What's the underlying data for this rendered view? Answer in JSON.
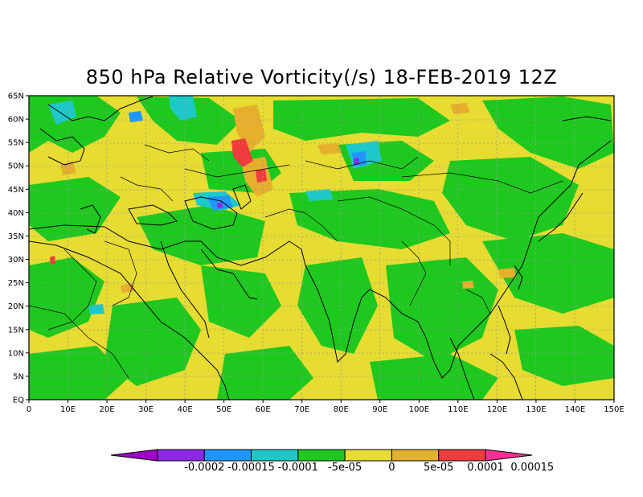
{
  "title": "850 hPa Relative Vorticity(/s) 18-FEB-2019 12Z",
  "map": {
    "lon_range": [
      0,
      150
    ],
    "lat_range": [
      0,
      65
    ],
    "x_ticks": [
      "0",
      "10E",
      "20E",
      "30E",
      "40E",
      "50E",
      "60E",
      "70E",
      "80E",
      "90E",
      "100E",
      "110E",
      "120E",
      "130E",
      "140E",
      "150E"
    ],
    "y_ticks": [
      "EQ",
      "5N",
      "10N",
      "15N",
      "20N",
      "25N",
      "30N",
      "35N",
      "40N",
      "45N",
      "50N",
      "55N",
      "60N",
      "65N"
    ],
    "grid": true,
    "background_level_color": "#e8d83a"
  },
  "colorbar": {
    "colors": [
      "#a000c8",
      "#8c28e6",
      "#1e96ff",
      "#1ec8c8",
      "#1ec81e",
      "#e6dc32",
      "#e6af2d",
      "#f03c3c",
      "#ff2e95"
    ],
    "labels": [
      "-0.0002",
      "-0.00015",
      "-0.0001",
      "-5e-05",
      "0",
      "5e-05",
      "0.0001",
      "0.00015"
    ],
    "orientation": "horizontal",
    "triangular_ends": true
  },
  "legend_colors": {
    "green": "#1ec81e",
    "yellow": "#e6dc32",
    "orange": "#e6af2d",
    "red": "#f03c3c",
    "cyan": "#1ec8c8",
    "blue": "#1e96ff",
    "purple": "#8c28e6"
  }
}
